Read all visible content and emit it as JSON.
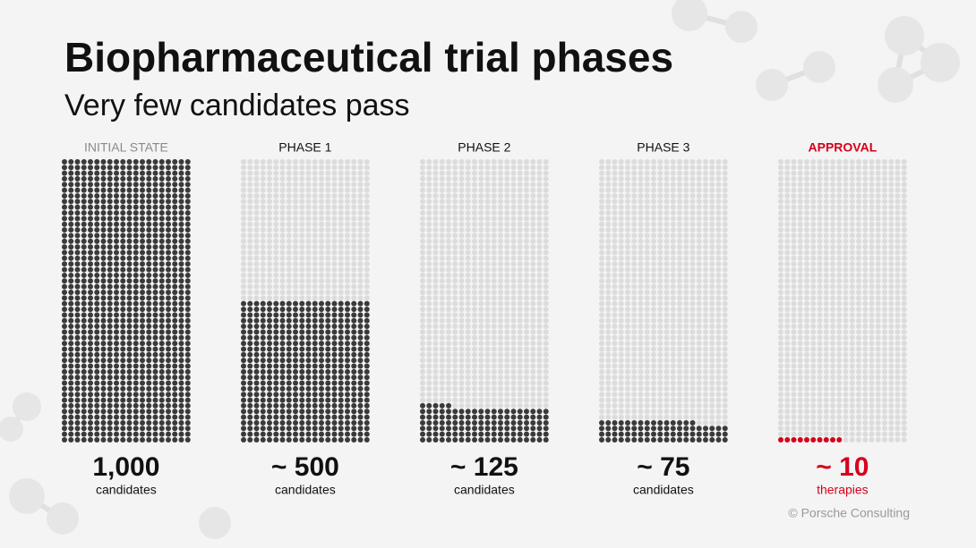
{
  "chart_data": {
    "type": "pictogram",
    "title": "Biopharmaceutical trial phases",
    "subtitle": "Very few candidates pass",
    "categories": [
      "INITIAL STATE",
      "PHASE 1",
      "PHASE 2",
      "PHASE 3",
      "APPROVAL"
    ],
    "values": [
      1000,
      500,
      125,
      75,
      10
    ],
    "value_labels": [
      "1,000",
      "~ 500",
      "~ 125",
      "~ 75",
      "~ 10"
    ],
    "units": [
      "candidates",
      "candidates",
      "candidates",
      "candidates",
      "therapies"
    ],
    "colors": [
      "#3a3a3a",
      "#3a3a3a",
      "#3a3a3a",
      "#3a3a3a",
      "#d5001c"
    ],
    "header_colors": [
      "#8a8a8a",
      "#111111",
      "#111111",
      "#111111",
      "#d5001c"
    ],
    "label_colors": [
      "#111111",
      "#111111",
      "#111111",
      "#111111",
      "#d5001c"
    ],
    "empty_color": "#dcdcdc",
    "ylim": [
      0,
      1000
    ],
    "source": "© Porsche Consulting"
  }
}
